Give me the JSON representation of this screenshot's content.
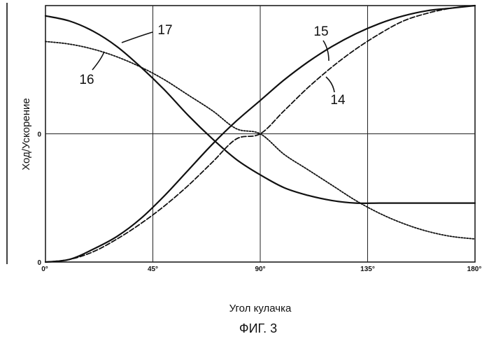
{
  "chart_data": {
    "type": "line",
    "title": "",
    "caption": "ФИГ. 3",
    "xlabel": "Угол кулачка",
    "ylabel": "Ход/Ускорение",
    "xlim": [
      0,
      180
    ],
    "x_ticks": [
      {
        "value": 0,
        "label": "0°"
      },
      {
        "value": 45,
        "label": "45°"
      },
      {
        "value": 90,
        "label": "90°"
      },
      {
        "value": 135,
        "label": "135°"
      },
      {
        "value": 180,
        "label": "180°"
      }
    ],
    "y_ticks": [
      {
        "value": 0,
        "label": "0"
      },
      {
        "value": 0.5,
        "label": "0"
      }
    ],
    "ylim": [
      0,
      1
    ],
    "grid": "vertical lines at 45°, 90°, 135°; horizontal line at middle level",
    "legend": "none (curves identified by numbered callouts)",
    "series": [
      {
        "callout": "14",
        "style": "dashed",
        "x": [
          0,
          10,
          20,
          30,
          40,
          50,
          60,
          70,
          80,
          90,
          100,
          110,
          120,
          130,
          140,
          150,
          160,
          170,
          180
        ],
        "values": [
          0.0,
          0.01,
          0.04,
          0.09,
          0.15,
          0.22,
          0.3,
          0.39,
          0.48,
          0.5,
          0.59,
          0.68,
          0.76,
          0.83,
          0.89,
          0.94,
          0.97,
          0.99,
          1.0
        ]
      },
      {
        "callout": "15",
        "style": "solid",
        "x": [
          0,
          10,
          20,
          30,
          40,
          50,
          60,
          70,
          80,
          90,
          100,
          110,
          120,
          130,
          140,
          150,
          160,
          170,
          180
        ],
        "values": [
          0.0,
          0.01,
          0.05,
          0.1,
          0.17,
          0.26,
          0.36,
          0.46,
          0.55,
          0.63,
          0.71,
          0.78,
          0.84,
          0.89,
          0.93,
          0.96,
          0.98,
          0.99,
          1.0
        ]
      },
      {
        "callout": "16",
        "style": "dotted",
        "x": [
          0,
          10,
          20,
          30,
          40,
          50,
          60,
          70,
          80,
          90,
          100,
          110,
          120,
          130,
          140,
          150,
          160,
          170,
          180
        ],
        "values": [
          0.86,
          0.85,
          0.83,
          0.8,
          0.76,
          0.71,
          0.65,
          0.59,
          0.52,
          0.5,
          0.42,
          0.36,
          0.3,
          0.24,
          0.19,
          0.15,
          0.12,
          0.1,
          0.09
        ]
      },
      {
        "callout": "17",
        "style": "solid",
        "x": [
          0,
          10,
          20,
          30,
          40,
          50,
          60,
          70,
          80,
          90,
          100,
          110,
          120,
          130,
          140,
          150,
          160,
          170,
          180
        ],
        "values": [
          0.96,
          0.94,
          0.9,
          0.84,
          0.76,
          0.67,
          0.57,
          0.48,
          0.4,
          0.34,
          0.29,
          0.26,
          0.24,
          0.23,
          0.23,
          0.23,
          0.23,
          0.23,
          0.23
        ]
      }
    ]
  }
}
